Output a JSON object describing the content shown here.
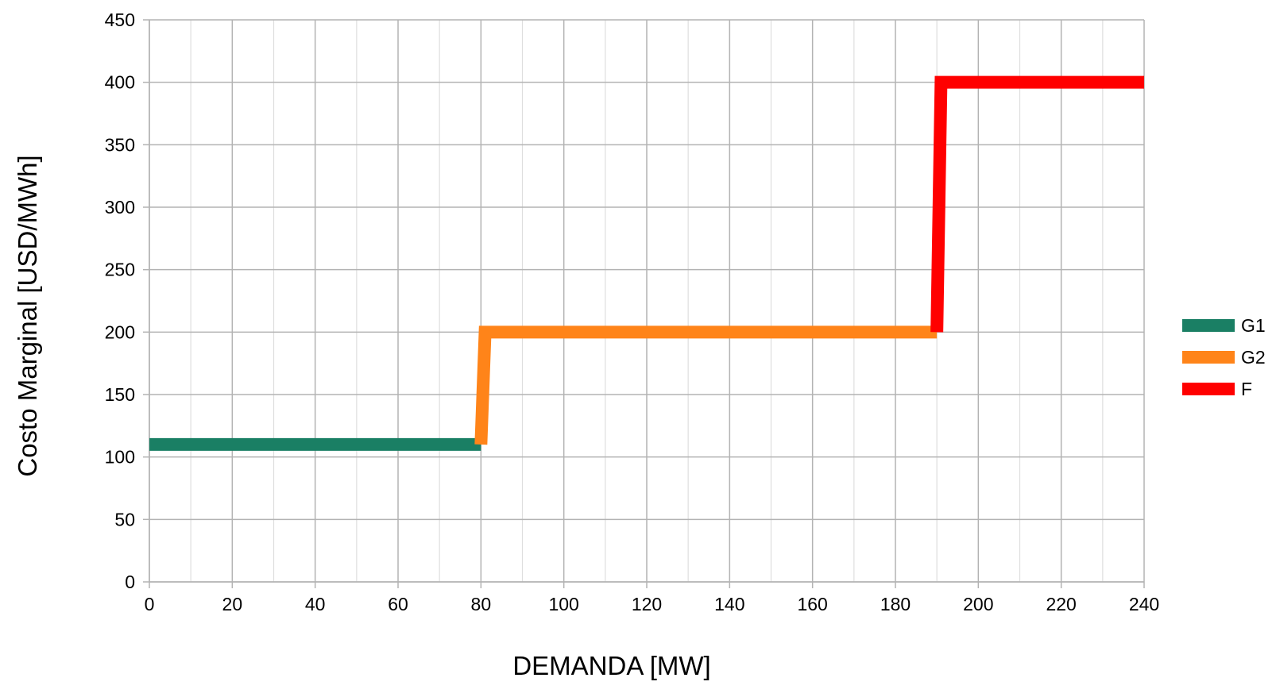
{
  "chart_data": {
    "type": "line",
    "title": "",
    "xlabel": "DEMANDA [MW]",
    "ylabel": "Costo Marginal [USD/MWh]",
    "xlim": [
      0,
      240
    ],
    "ylim": [
      0,
      450
    ],
    "xticks": [
      0,
      20,
      40,
      60,
      80,
      100,
      120,
      140,
      160,
      180,
      200,
      220,
      240
    ],
    "yticks": [
      0,
      50,
      100,
      150,
      200,
      250,
      300,
      350,
      400,
      450
    ],
    "grid": true,
    "legend_position": "right",
    "series": [
      {
        "name": "G1",
        "color": "#1a7f64",
        "points": [
          [
            0,
            110
          ],
          [
            80,
            110
          ]
        ]
      },
      {
        "name": "G2",
        "color": "#ff8419",
        "points": [
          [
            80,
            110
          ],
          [
            81,
            200
          ],
          [
            190,
            200
          ]
        ]
      },
      {
        "name": "F",
        "color": "#ff0000",
        "points": [
          [
            190,
            200
          ],
          [
            191,
            400
          ],
          [
            240,
            400
          ]
        ]
      }
    ]
  }
}
